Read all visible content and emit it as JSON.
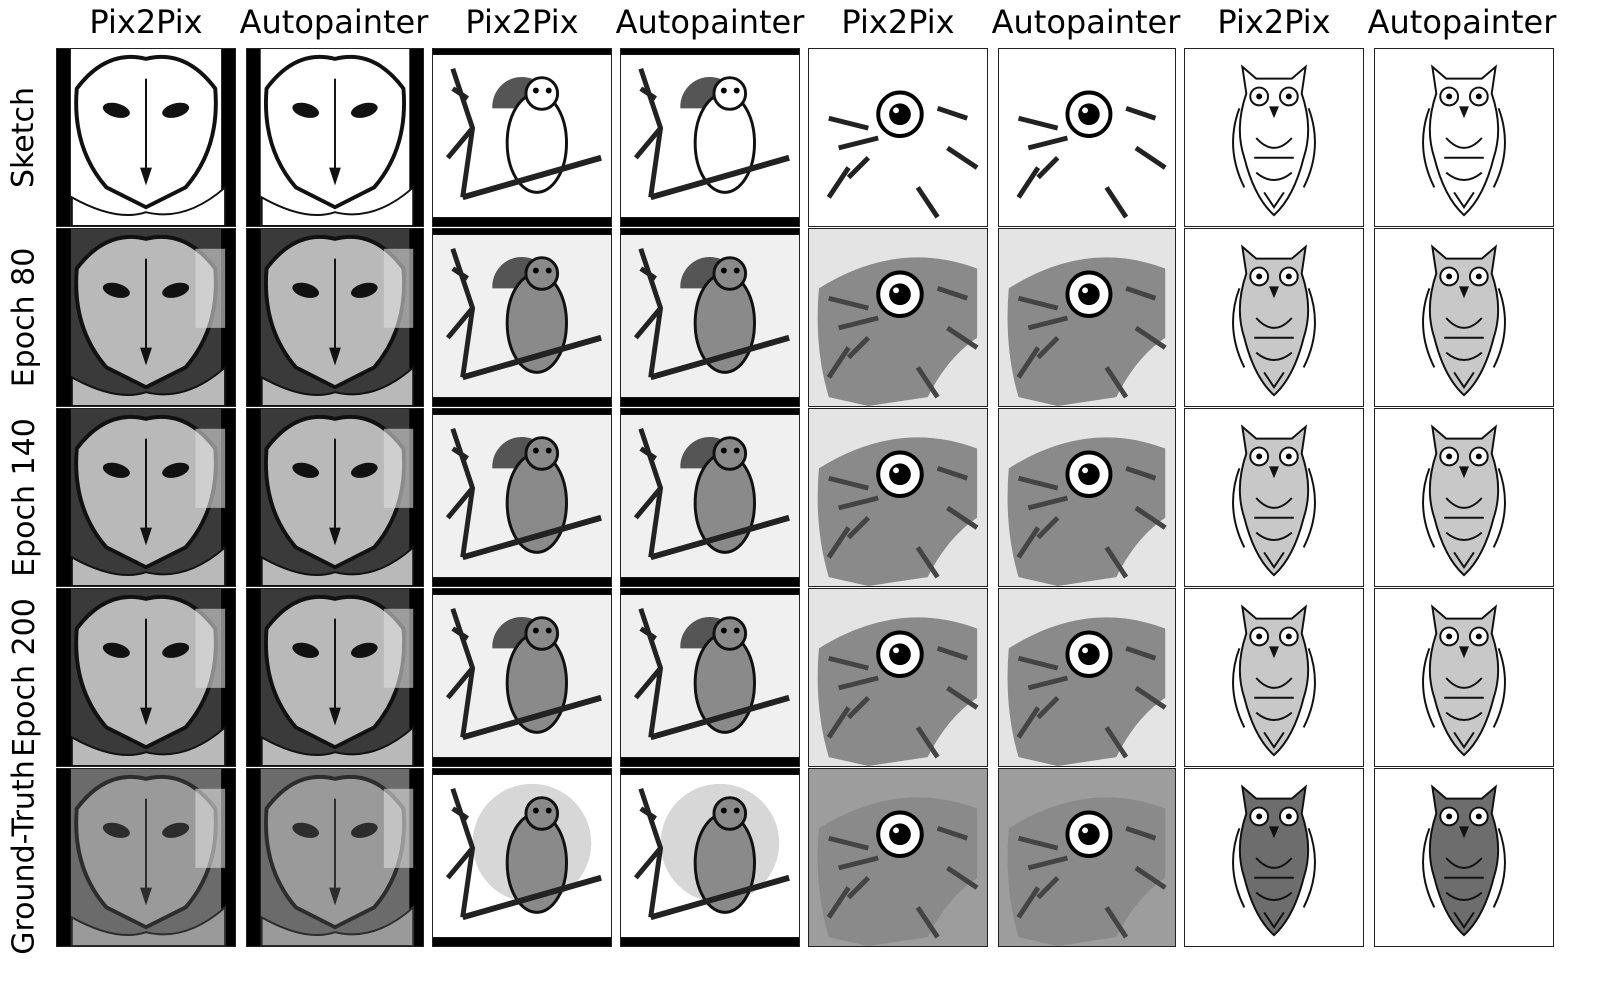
{
  "column_headers": [
    "Pix2Pix",
    "Autopainter",
    "Pix2Pix",
    "Autopainter",
    "Pix2Pix",
    "Autopainter",
    "Pix2Pix",
    "Autopainter"
  ],
  "row_labels": [
    "Sketch",
    "Epoch 80",
    "Epoch 140",
    "Epoch 200",
    "Ground-Truth"
  ],
  "subjects": [
    "barn-owl",
    "perched-owl",
    "owl-eye-closeup",
    "tribal-owl"
  ],
  "rows": [
    {
      "kind": "sketch"
    },
    {
      "kind": "generated",
      "epoch": 80
    },
    {
      "kind": "generated",
      "epoch": 140
    },
    {
      "kind": "generated",
      "epoch": 200
    },
    {
      "kind": "ground-truth"
    }
  ]
}
